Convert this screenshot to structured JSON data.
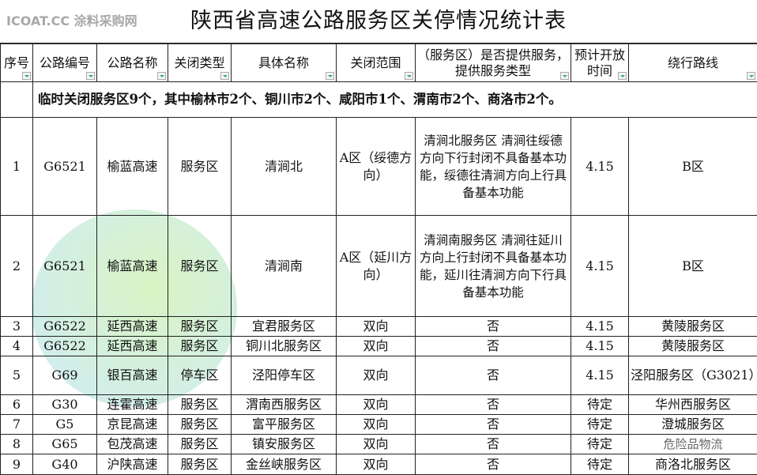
{
  "title": "陕西省高速公路服务区关停情况统计表",
  "headers": [
    "序号",
    "公路编号",
    "公路名称",
    "关闭类型",
    "具体名称",
    "关闭范围",
    "（服务区）是否提供服务，提供服务类型",
    "预计开放时间",
    "绕行路线"
  ],
  "note": "临时关闭服务区9个，其中榆林市2个、铜川市2个、咸阳市1个、渭南市2个、商洛市2个。",
  "rows": [
    {
      "no": "1",
      "code": "G6521",
      "name": "榆蓝高速",
      "type": "服务区",
      "site": "清涧北",
      "range": "A区（绥德方向）",
      "service": "清涧北服务区 清涧往绥德方向下行封闭不具备基本功能，绥德往清涧方向上行具备基本功能",
      "open": "4.15",
      "detour": "B区"
    },
    {
      "no": "2",
      "code": "G6521",
      "name": "榆蓝高速",
      "type": "服务区",
      "site": "清涧南",
      "range": "A区（延川方向）",
      "service": "清涧南服务区 清涧往延川方向上行封闭不具备基本功能，延川往清涧方向下行具备基本功能",
      "open": "4.15",
      "detour": "B区"
    },
    {
      "no": "3",
      "code": "G6522",
      "name": "延西高速",
      "type": "服务区",
      "site": "宜君服务区",
      "range": "双向",
      "service": "否",
      "open": "4.15",
      "detour": "黄陵服务区"
    },
    {
      "no": "4",
      "code": "G6522",
      "name": "延西高速",
      "type": "服务区",
      "site": "铜川北服务区",
      "range": "双向",
      "service": "否",
      "open": "4.15",
      "detour": "黄陵服务区"
    },
    {
      "no": "5",
      "code": "G69",
      "name": "银百高速",
      "type": "停车区",
      "site": "泾阳停车区",
      "range": "双向",
      "service": "否",
      "open": "4.15",
      "detour": "泾阳服务区（G3021）"
    },
    {
      "no": "6",
      "code": "G30",
      "name": "连霍高速",
      "type": "服务区",
      "site": "渭南西服务区",
      "range": "双向",
      "service": "否",
      "open": "待定",
      "detour": "华州西服务区"
    },
    {
      "no": "7",
      "code": "G5",
      "name": "京昆高速",
      "type": "服务区",
      "site": "富平服务区",
      "range": "双向",
      "service": "否",
      "open": "待定",
      "detour": "澄城服务区"
    },
    {
      "no": "8",
      "code": "G65",
      "name": "包茂高速",
      "type": "服务区",
      "site": "镇安服务区",
      "range": "双向",
      "service": "否",
      "open": "待定",
      "detour": ""
    },
    {
      "no": "9",
      "code": "G40",
      "name": "沪陕高速",
      "type": "服务区",
      "site": "金丝峡服务区",
      "range": "双向",
      "service": "否",
      "open": "待定",
      "detour": "商洛北服务区"
    }
  ],
  "watermarks": {
    "main": "ICOAT.CC 涂料采购网",
    "corner": "危险品物流"
  },
  "filter_icon": "dropdown-filter-icon"
}
